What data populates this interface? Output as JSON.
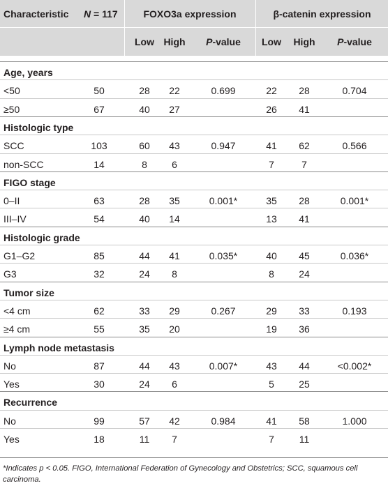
{
  "header": {
    "characteristic": "Characteristic",
    "n_label": "N",
    "n_value": "= 117",
    "foxo3a": "FOXO3a expression",
    "beta_catenin": "β-catenin expression",
    "low": "Low",
    "high": "High",
    "p_label": "P",
    "p_suffix": "-value"
  },
  "sections": [
    {
      "title": "Age, years",
      "rows": [
        {
          "label": "<50",
          "n": "50",
          "f_low": "28",
          "f_high": "22",
          "f_p": "0.699",
          "b_low": "22",
          "b_high": "28",
          "b_p": "0.704"
        },
        {
          "label": "≥50",
          "n": "67",
          "f_low": "40",
          "f_high": "27",
          "f_p": "",
          "b_low": "26",
          "b_high": "41",
          "b_p": ""
        }
      ]
    },
    {
      "title": "Histologic type",
      "rows": [
        {
          "label": "SCC",
          "n": "103",
          "f_low": "60",
          "f_high": "43",
          "f_p": "0.947",
          "b_low": "41",
          "b_high": "62",
          "b_p": "0.566"
        },
        {
          "label": "non-SCC",
          "n": "14",
          "f_low": "8",
          "f_high": "6",
          "f_p": "",
          "b_low": "7",
          "b_high": "7",
          "b_p": ""
        }
      ]
    },
    {
      "title": "FIGO stage",
      "rows": [
        {
          "label": "0–II",
          "n": "63",
          "f_low": "28",
          "f_high": "35",
          "f_p": "0.001*",
          "b_low": "35",
          "b_high": "28",
          "b_p": "0.001*"
        },
        {
          "label": "III–IV",
          "n": "54",
          "f_low": "40",
          "f_high": "14",
          "f_p": "",
          "b_low": "13",
          "b_high": "41",
          "b_p": ""
        }
      ]
    },
    {
      "title": "Histologic grade",
      "rows": [
        {
          "label": "G1–G2",
          "n": "85",
          "f_low": "44",
          "f_high": "41",
          "f_p": "0.035*",
          "b_low": "40",
          "b_high": "45",
          "b_p": "0.036*"
        },
        {
          "label": "G3",
          "n": "32",
          "f_low": "24",
          "f_high": "8",
          "f_p": "",
          "b_low": "8",
          "b_high": "24",
          "b_p": ""
        }
      ]
    },
    {
      "title": "Tumor size",
      "rows": [
        {
          "label": "<4 cm",
          "n": "62",
          "f_low": "33",
          "f_high": "29",
          "f_p": "0.267",
          "b_low": "29",
          "b_high": "33",
          "b_p": "0.193"
        },
        {
          "label": "≥4 cm",
          "n": "55",
          "f_low": "35",
          "f_high": "20",
          "f_p": "",
          "b_low": "19",
          "b_high": "36",
          "b_p": ""
        }
      ]
    },
    {
      "title": "Lymph node metastasis",
      "rows": [
        {
          "label": "No",
          "n": "87",
          "f_low": "44",
          "f_high": "43",
          "f_p": "0.007*",
          "b_low": "43",
          "b_high": "44",
          "b_p": "<0.002*"
        },
        {
          "label": "Yes",
          "n": "30",
          "f_low": "24",
          "f_high": "6",
          "f_p": "",
          "b_low": "5",
          "b_high": "25",
          "b_p": ""
        }
      ]
    },
    {
      "title": "Recurrence",
      "rows": [
        {
          "label": "No",
          "n": "99",
          "f_low": "57",
          "f_high": "42",
          "f_p": "0.984",
          "b_low": "41",
          "b_high": "58",
          "b_p": "1.000"
        },
        {
          "label": "Yes",
          "n": "18",
          "f_low": "11",
          "f_high": "7",
          "f_p": "",
          "b_low": "7",
          "b_high": "11",
          "b_p": ""
        }
      ]
    }
  ],
  "footnote": {
    "prefix": "*Indicates ",
    "p": "p",
    "rest": " < 0.05. FIGO, International Federation of Gynecology and Obstetrics; SCC, squamous cell carcinoma."
  },
  "colors": {
    "header_bg": "#d9d9d9",
    "text": "#231f20",
    "rule": "#8a8a8a"
  }
}
